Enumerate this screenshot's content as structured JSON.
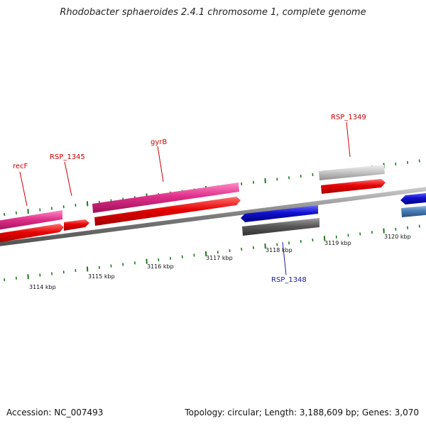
{
  "title": "Rhodobacter sphaeroides 2.4.1 chromosome 1, complete genome",
  "footer": {
    "accession": "Accession: NC_007493",
    "stats": "Topology: circular; Length: 3,188,609 bp; Genes: 3,070"
  },
  "colors": {
    "backbone": "#7a7a7a",
    "tick": "#1e7a1e",
    "label_red": "#cc0000",
    "label_blue": "#1a1aa8",
    "magenta": "#e0308a",
    "red": "#e60000",
    "blue": "#1010d0",
    "dark_grey": "#5a5a5a",
    "light_grey": "#c8c8c8",
    "steel_blue": "#4a80b8"
  },
  "scale_labels": [
    "3114 kbp",
    "3115 kbp",
    "3116 kbp",
    "3117 kbp",
    "3118 kbp",
    "3119 kbp",
    "3120 kbp"
  ],
  "gene_labels": [
    {
      "text": "recF",
      "color": "label_red"
    },
    {
      "text": "RSP_1345",
      "color": "label_red"
    },
    {
      "text": "gyrB",
      "color": "label_red"
    },
    {
      "text": "RSP_1349",
      "color": "label_red"
    },
    {
      "text": "RSP_1348",
      "color": "label_blue"
    }
  ],
  "features": [
    {
      "name": "recF-magenta",
      "color": "magenta"
    },
    {
      "name": "recF-red",
      "color": "red"
    },
    {
      "name": "rsp1345-red",
      "color": "red"
    },
    {
      "name": "gyrB-magenta",
      "color": "magenta"
    },
    {
      "name": "gyrB-red",
      "color": "red"
    },
    {
      "name": "rsp1348-blue",
      "color": "blue"
    },
    {
      "name": "rsp1348-grey",
      "color": "dark_grey"
    },
    {
      "name": "rsp1349-lightgrey",
      "color": "light_grey"
    },
    {
      "name": "rsp1349-red",
      "color": "red"
    },
    {
      "name": "right-blue",
      "color": "blue"
    },
    {
      "name": "right-steelblue",
      "color": "steel_blue"
    }
  ]
}
